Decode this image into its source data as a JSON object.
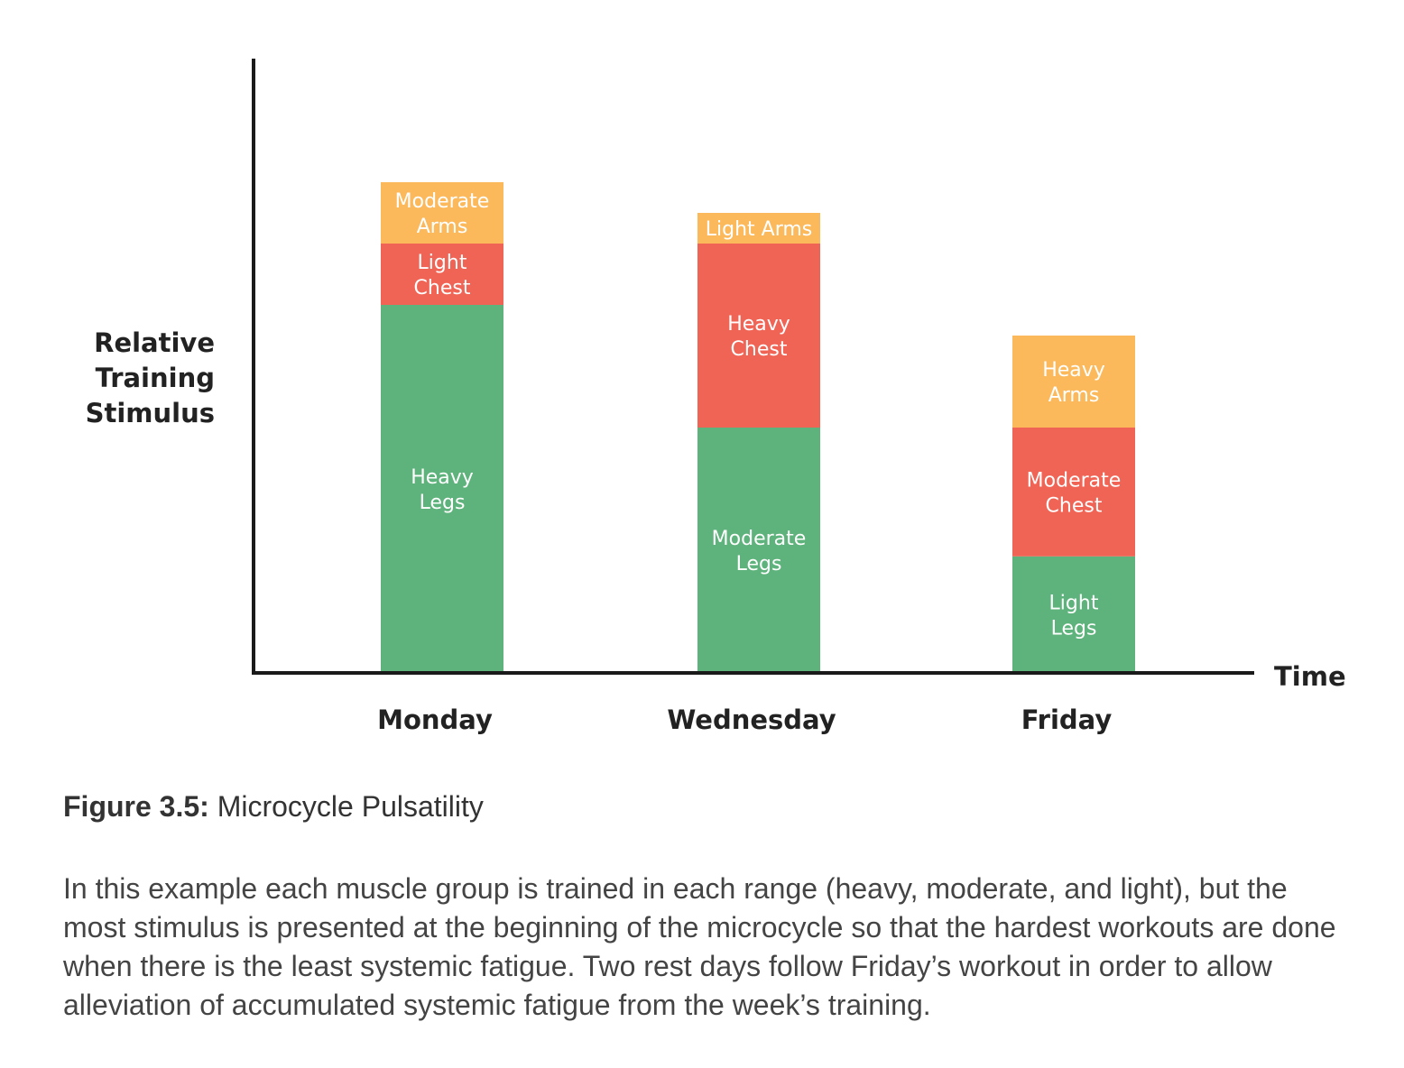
{
  "chart_data": {
    "type": "bar",
    "stacked": true,
    "title": "",
    "xlabel": "Time",
    "ylabel": [
      "Relative",
      "Training",
      "Stimulus"
    ],
    "ylim": [
      0,
      100
    ],
    "grid": false,
    "legend": "none",
    "categories": [
      "Monday",
      "Wednesday",
      "Friday"
    ],
    "stacks": [
      {
        "category": "Monday",
        "segments": [
          {
            "label": [
              "Heavy",
              "Legs"
            ],
            "value": 60,
            "color": "#5db37b"
          },
          {
            "label": [
              "Light",
              "Chest"
            ],
            "value": 10,
            "color": "#f06455"
          },
          {
            "label": [
              "Moderate",
              "Arms"
            ],
            "value": 10,
            "color": "#fbb95c"
          }
        ]
      },
      {
        "category": "Wednesday",
        "segments": [
          {
            "label": [
              "Moderate",
              "Legs"
            ],
            "value": 40,
            "color": "#5db37b"
          },
          {
            "label": [
              "Heavy",
              "Chest"
            ],
            "value": 30,
            "color": "#f06455"
          },
          {
            "label": [
              "Light Arms"
            ],
            "value": 5,
            "color": "#fbb95c"
          }
        ]
      },
      {
        "category": "Friday",
        "segments": [
          {
            "label": [
              "Light",
              "Legs"
            ],
            "value": 19,
            "color": "#5db37b"
          },
          {
            "label": [
              "Moderate",
              "Chest"
            ],
            "value": 21,
            "color": "#f06455"
          },
          {
            "label": [
              "Heavy",
              "Arms"
            ],
            "value": 15,
            "color": "#fbb95c"
          }
        ]
      }
    ]
  },
  "caption": {
    "figure_number": "Figure 3.5:",
    "title": "Microcycle Pulsatility"
  },
  "body_text": "In this example each muscle group is trained in each range (heavy, moderate, and light), but the most stimulus is presented at the beginning of the microcycle so that the hardest workouts are done when there is the least systemic fatigue. Two rest days follow Friday’s workout in order to allow alleviation of accumulated systemic fatigue from the week’s training."
}
